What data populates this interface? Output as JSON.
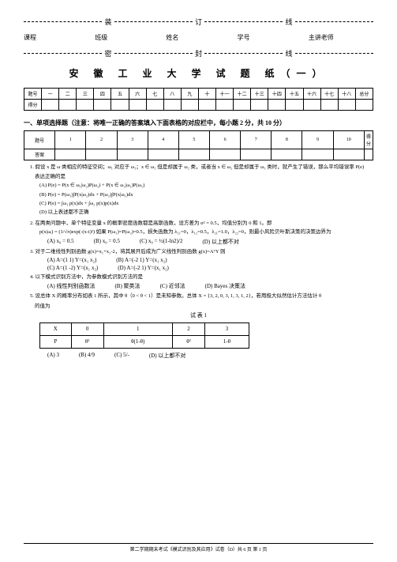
{
  "binding": {
    "c1": "装",
    "c2": "订",
    "c3": "线",
    "c4": "密",
    "c5": "封",
    "c6": "线"
  },
  "info": {
    "l1": "课程",
    "l2": "班级",
    "l3": "姓名",
    "l4": "学号",
    "l5": "主讲老师"
  },
  "title": "安 徽 工 业 大 学 试 题 纸（一）",
  "t1h": [
    "题号",
    "一",
    "二",
    "三",
    "四",
    "五",
    "六",
    "七",
    "八",
    "九",
    "十",
    "十一",
    "十二",
    "十三",
    "十四",
    "十五",
    "十六",
    "十七",
    "十八",
    "总分"
  ],
  "t1r": "得分",
  "sect1": "一、单项选择题（注意：将唯一正确的答案填入下面表格的对应栏中，每小题 2 分，共 10 分）",
  "t2h": [
    "题号",
    "1",
    "2",
    "3",
    "4",
    "5",
    "6",
    "7",
    "8",
    "9",
    "10",
    "得分"
  ],
  "t2r": "答案",
  "q1": "1. 假设 x 是 ω 类相应的特征空间；ω₁ 对应于 ω₁；x ∈ ω₁ 但是却属于 ω₂ 类，或者当 x ∈ ω₂ 但是却属于 ω₁ 类时，就产生了错误，那么平均错误率 P(e)",
  "q1t": "表达正确的是",
  "q1a": "(A) P(e) = P(x ∈ ω₁|ω₂)P(ω₂) + P(x ∈ ω₂|ω₁)P(ω₁)",
  "q1b": "(B) P(e) = P(ω₁)∫P(x|ω₂)dx + P(ω₂)∫P(x|ω₁)dx",
  "q1c": "(C) P(e) = ∫ω₁ p(x)dx + ∫ω₂ p(x)p(x)dx",
  "q1d": "(D) 以上表述都不正确",
  "q2": "2. 在两类问题中，单个特征变量 x 的概率密度函数都是高斯函数，设方差为 σ² = 0.5，均值分别为 0 和 1。即",
  "q2f": "p(x|ωᵢ) = (1/√π)exp(-(x-i)²)   如果 P(ω₁)=P(ω₂)=0.5，损失函数为 λ₁₁=0，λ₁₂=0.5，λ₂₁=1.0，λ₂₂=0，则最小风险贝叶斯决策的决策边界为",
  "q2a": "(A) x₀ = 0.5",
  "q2b": "(B) x₀ = 0.5",
  "q2c": "(C) x₀ = ½(1-ln2)/2",
  "q2d": "(D) 以上都不对",
  "q3": "3. 对于二维线性判别函数 g(x)=x₁+x₂-2，将其展开后成为广义线性判别函数 g(x)=AᵀY 则",
  "q3a": "(A)",
  "q3b": "(B)",
  "q3c": "(C)",
  "q3d": "(D)",
  "q4": "4. 以下模式识别方法中，为参数模式识别方法的是",
  "q4a": "(A) 线性判别函数法",
  "q4b": "(B) 聚类法",
  "q4c": "(C) 近邻法",
  "q4d": "(D) Bayes 决策法",
  "q5": "5. 设总体 X 的概率分布如表 1 所示，其中 θ（0 < θ < 1）是未知参数。总体 X = {3, 2, 0, 3, 1, 3, 1, 2}，若用极大似然估计方法估计 θ",
  "q5t": "的值为",
  "t3cap": "试 表 1",
  "t3h": [
    "X",
    "0",
    "1",
    "2",
    "3"
  ],
  "t3r1": [
    "P",
    "θ²",
    "θ(1-θ)",
    "θ²",
    "1-θ"
  ],
  "t3a": "(A) 3",
  "t3b": "(B) 4/9",
  "t3c": "(C) 5/-",
  "t3d": "(D) 以上都不对",
  "footer": "第二学期期末考试《模式识别及其应用》试卷（D）共 6 页 第 1 页"
}
